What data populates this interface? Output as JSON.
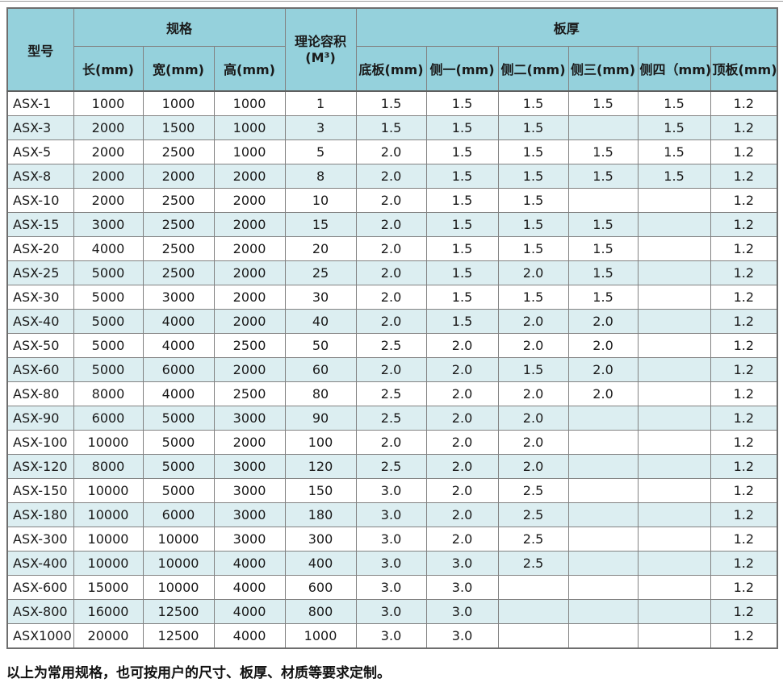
{
  "colors": {
    "header_bg": "#95d1dc",
    "alt_row_bg": "#dceef1",
    "border": "#828282"
  },
  "page": {
    "footer_note": "以上为常用规格，也可按用户的尺寸、板厚、材质等要求定制。"
  },
  "table": {
    "header": {
      "model": "型号",
      "spec_group": "规格",
      "spec_cols": [
        "长(mm)",
        "宽(mm)",
        "高(mm)"
      ],
      "capacity_line1": "理论容积",
      "capacity_line2": "(M³)",
      "thickness_group": "板厚",
      "thickness_cols": [
        "底板(mm)",
        "侧一(mm)",
        "侧二(mm)",
        "侧三(mm)",
        "侧四（mm)",
        "顶板(mm)"
      ]
    },
    "rows": [
      [
        "ASX-1",
        "1000",
        "1000",
        "1000",
        "1",
        "1.5",
        "1.5",
        "1.5",
        "1.5",
        "1.5",
        "1.2"
      ],
      [
        "ASX-3",
        "2000",
        "1500",
        "1000",
        "3",
        "1.5",
        "1.5",
        "1.5",
        "",
        "1.5",
        "1.2"
      ],
      [
        "ASX-5",
        "2000",
        "2500",
        "1000",
        "5",
        "2.0",
        "1.5",
        "1.5",
        "1.5",
        "1.5",
        "1.2"
      ],
      [
        "ASX-8",
        "2000",
        "2000",
        "2000",
        "8",
        "2.0",
        "1.5",
        "1.5",
        "1.5",
        "1.5",
        "1.2"
      ],
      [
        "ASX-10",
        "2000",
        "2500",
        "2000",
        "10",
        "2.0",
        "1.5",
        "1.5",
        "",
        "",
        "1.2"
      ],
      [
        "ASX-15",
        "3000",
        "2500",
        "2000",
        "15",
        "2.0",
        "1.5",
        "1.5",
        "1.5",
        "",
        "1.2"
      ],
      [
        "ASX-20",
        "4000",
        "2500",
        "2000",
        "20",
        "2.0",
        "1.5",
        "1.5",
        "1.5",
        "",
        "1.2"
      ],
      [
        "ASX-25",
        "5000",
        "2500",
        "2000",
        "25",
        "2.0",
        "1.5",
        "2.0",
        "1.5",
        "",
        "1.2"
      ],
      [
        "ASX-30",
        "5000",
        "3000",
        "2000",
        "30",
        "2.0",
        "1.5",
        "1.5",
        "1.5",
        "",
        "1.2"
      ],
      [
        "ASX-40",
        "5000",
        "4000",
        "2000",
        "40",
        "2.0",
        "1.5",
        "2.0",
        "2.0",
        "",
        "1.2"
      ],
      [
        "ASX-50",
        "5000",
        "4000",
        "2500",
        "50",
        "2.5",
        "2.0",
        "2.0",
        "2.0",
        "",
        "1.2"
      ],
      [
        "ASX-60",
        "5000",
        "6000",
        "2000",
        "60",
        "2.0",
        "2.0",
        "1.5",
        "2.0",
        "",
        "1.2"
      ],
      [
        "ASX-80",
        "8000",
        "4000",
        "2500",
        "80",
        "2.5",
        "2.0",
        "2.0",
        "2.0",
        "",
        "1.2"
      ],
      [
        "ASX-90",
        "6000",
        "5000",
        "3000",
        "90",
        "2.5",
        "2.0",
        "2.0",
        "",
        "",
        "1.2"
      ],
      [
        "ASX-100",
        "10000",
        "5000",
        "2000",
        "100",
        "2.0",
        "2.0",
        "2.0",
        "",
        "",
        "1.2"
      ],
      [
        "ASX-120",
        "8000",
        "5000",
        "3000",
        "120",
        "2.5",
        "2.0",
        "2.0",
        "",
        "",
        "1.2"
      ],
      [
        "ASX-150",
        "10000",
        "5000",
        "3000",
        "150",
        "3.0",
        "2.0",
        "2.5",
        "",
        "",
        "1.2"
      ],
      [
        "ASX-180",
        "10000",
        "6000",
        "3000",
        "180",
        "3.0",
        "2.0",
        "2.5",
        "",
        "",
        "1.2"
      ],
      [
        "ASX-300",
        "10000",
        "10000",
        "3000",
        "300",
        "3.0",
        "2.0",
        "2.5",
        "",
        "",
        "1.2"
      ],
      [
        "ASX-400",
        "10000",
        "10000",
        "4000",
        "400",
        "3.0",
        "3.0",
        "2.5",
        "",
        "",
        "1.2"
      ],
      [
        "ASX-600",
        "15000",
        "10000",
        "4000",
        "600",
        "3.0",
        "3.0",
        "",
        "",
        "",
        "1.2"
      ],
      [
        "ASX-800",
        "16000",
        "12500",
        "4000",
        "800",
        "3.0",
        "3.0",
        "",
        "",
        "",
        "1.2"
      ],
      [
        "ASX1000",
        "20000",
        "12500",
        "4000",
        "1000",
        "3.0",
        "3.0",
        "",
        "",
        "",
        "1.2"
      ]
    ]
  }
}
